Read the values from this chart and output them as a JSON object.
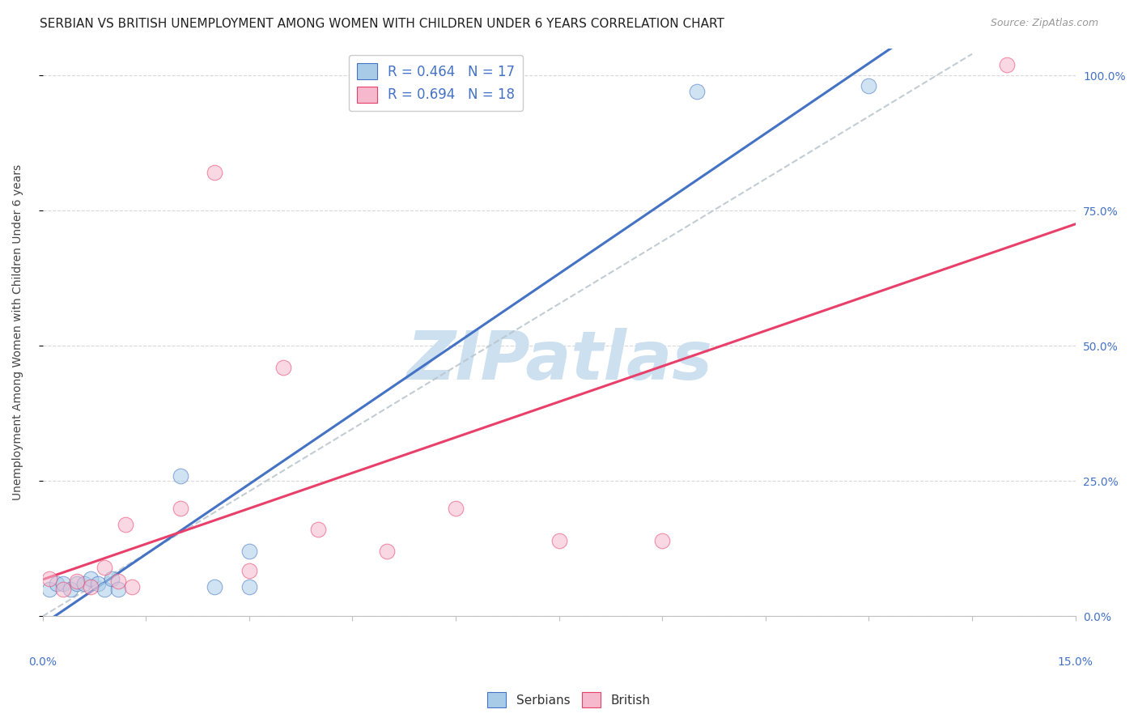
{
  "title": "SERBIAN VS BRITISH UNEMPLOYMENT AMONG WOMEN WITH CHILDREN UNDER 6 YEARS CORRELATION CHART",
  "source": "Source: ZipAtlas.com",
  "ylabel": "Unemployment Among Women with Children Under 6 years",
  "right_ytick_labels": [
    "0.0%",
    "25.0%",
    "50.0%",
    "75.0%",
    "100.0%"
  ],
  "right_ytick_values": [
    0.0,
    0.25,
    0.5,
    0.75,
    1.0
  ],
  "legend_serbian": "R = 0.464   N = 17",
  "legend_british": "R = 0.694   N = 18",
  "legend_label_serbian": "Serbians",
  "legend_label_british": "British",
  "serbian_color": "#a8cce8",
  "british_color": "#f5b8cc",
  "regression_serbian_color": "#4472c4",
  "regression_british_color": "#e8406a",
  "diagonal_color": "#b8c4cc",
  "watermark_color": "#cce0f0",
  "xmin": 0.0,
  "xmax": 0.15,
  "ymin": 0.0,
  "ymax": 1.05,
  "serbian_x": [
    0.001,
    0.002,
    0.003,
    0.004,
    0.005,
    0.006,
    0.007,
    0.008,
    0.009,
    0.01,
    0.011,
    0.02,
    0.025,
    0.03,
    0.03,
    0.095,
    0.12
  ],
  "serbian_y": [
    0.05,
    0.06,
    0.06,
    0.05,
    0.06,
    0.06,
    0.07,
    0.06,
    0.05,
    0.07,
    0.05,
    0.26,
    0.055,
    0.12,
    0.055,
    0.97,
    0.98
  ],
  "british_x": [
    0.001,
    0.003,
    0.005,
    0.007,
    0.009,
    0.011,
    0.012,
    0.013,
    0.02,
    0.025,
    0.03,
    0.035,
    0.04,
    0.05,
    0.06,
    0.075,
    0.09,
    0.14
  ],
  "british_y": [
    0.07,
    0.05,
    0.065,
    0.055,
    0.09,
    0.065,
    0.17,
    0.055,
    0.2,
    0.82,
    0.085,
    0.46,
    0.16,
    0.12,
    0.2,
    0.14,
    0.14,
    1.02
  ],
  "marker_size": 180,
  "title_fontsize": 11,
  "axis_label_fontsize": 10,
  "tick_fontsize": 10,
  "legend_fontsize": 12
}
